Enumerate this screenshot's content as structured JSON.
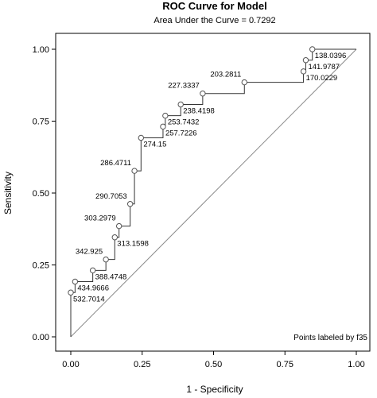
{
  "chart_data": {
    "type": "line",
    "title": "ROC Curve for Model",
    "subtitle": "Area Under the Curve = 0.7292",
    "xlabel": "1 - Specificity",
    "ylabel": "Sensitivity",
    "xlim": [
      0,
      1
    ],
    "ylim": [
      0,
      1
    ],
    "xticks": [
      "0.00",
      "0.25",
      "0.50",
      "0.75",
      "1.00"
    ],
    "yticks": [
      "0.00",
      "0.25",
      "0.50",
      "0.75",
      "1.00"
    ],
    "xtick_values": [
      0,
      0.25,
      0.5,
      0.75,
      1.0
    ],
    "ytick_values": [
      0,
      0.25,
      0.5,
      0.75,
      1.0
    ],
    "grid": false,
    "note": "Points labeled by f35",
    "reference_line": [
      [
        0,
        0
      ],
      [
        1,
        1
      ]
    ],
    "curve": [
      [
        0,
        0
      ],
      [
        0,
        0.154
      ],
      [
        0.115,
        0.154
      ],
      [
        0.115,
        0.154
      ]
    ],
    "points": [
      {
        "x": 0.0,
        "y": 0.154,
        "label": "532.7014"
      },
      {
        "x": 0.015,
        "y": 0.192,
        "label": "434.9666"
      },
      {
        "x": 0.077,
        "y": 0.231,
        "label": "388.4748"
      },
      {
        "x": 0.123,
        "y": 0.269,
        "label": "342.925"
      },
      {
        "x": 0.154,
        "y": 0.346,
        "label": "313.1598"
      },
      {
        "x": 0.169,
        "y": 0.385,
        "label": "303.2979"
      },
      {
        "x": 0.208,
        "y": 0.462,
        "label": "290.7053"
      },
      {
        "x": 0.223,
        "y": 0.577,
        "label": "286.4711"
      },
      {
        "x": 0.246,
        "y": 0.692,
        "label": "274.15"
      },
      {
        "x": 0.323,
        "y": 0.731,
        "label": "257.7226"
      },
      {
        "x": 0.331,
        "y": 0.769,
        "label": "253.7432"
      },
      {
        "x": 0.385,
        "y": 0.808,
        "label": "238.4198"
      },
      {
        "x": 0.462,
        "y": 0.846,
        "label": "227.3337"
      },
      {
        "x": 0.608,
        "y": 0.885,
        "label": "203.2811"
      },
      {
        "x": 0.815,
        "y": 0.923,
        "label": "170.0229"
      },
      {
        "x": 0.823,
        "y": 0.962,
        "label": "141.9787"
      },
      {
        "x": 0.846,
        "y": 1.0,
        "label": "138.0396"
      }
    ]
  }
}
